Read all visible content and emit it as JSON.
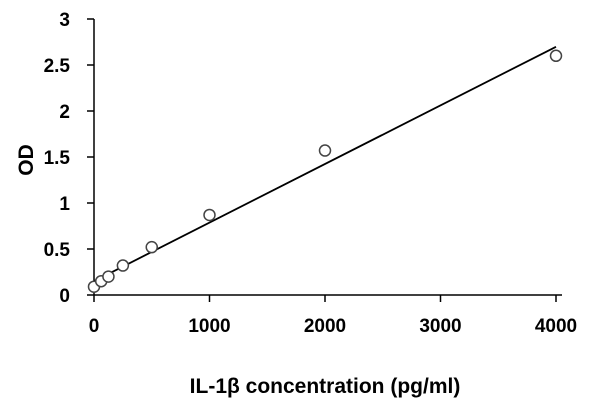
{
  "chart_data": {
    "type": "scatter",
    "title": "",
    "xlabel": "IL-1β concentration (pg/ml)",
    "ylabel": "OD",
    "xlim": [
      0,
      4000
    ],
    "ylim": [
      0,
      3
    ],
    "xticks": [
      "0",
      "1000",
      "2000",
      "3000",
      "4000"
    ],
    "yticks": [
      "0",
      "0.5",
      "1",
      "1.5",
      "2",
      "2.5",
      "3"
    ],
    "grid": false,
    "points": [
      {
        "x": 0,
        "y": 0.09
      },
      {
        "x": 62.5,
        "y": 0.15
      },
      {
        "x": 125,
        "y": 0.2
      },
      {
        "x": 250,
        "y": 0.32
      },
      {
        "x": 500,
        "y": 0.52
      },
      {
        "x": 1000,
        "y": 0.87
      },
      {
        "x": 2000,
        "y": 1.57
      },
      {
        "x": 4000,
        "y": 2.6
      }
    ],
    "trendline": {
      "type": "linear",
      "intercept": 0.15,
      "slope": 0.000637
    }
  }
}
